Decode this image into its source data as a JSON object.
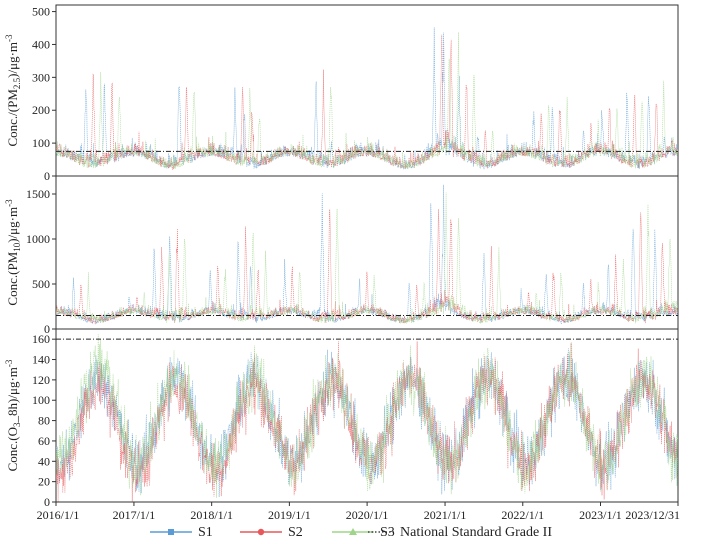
{
  "chart_data": [
    {
      "type": "line",
      "panel": "PM2.5",
      "ylabel_parts": [
        "Conc./(PM",
        "2.5",
        ")/μg·m",
        "-3"
      ],
      "ylim": [
        0,
        520
      ],
      "yticks": [
        "0",
        "100",
        "200",
        "300",
        "400",
        "500"
      ],
      "ytick_values": [
        0,
        100,
        200,
        300,
        400,
        500
      ],
      "standard_value": 75,
      "baseline": 40,
      "seasonal_amp": 20,
      "noise": 18,
      "peaks": [
        {
          "t": 0.06,
          "v": 350
        },
        {
          "t": 0.09,
          "v": 330
        },
        {
          "t": 0.21,
          "v": 350
        },
        {
          "t": 0.3,
          "v": 300
        },
        {
          "t": 0.315,
          "v": 250
        },
        {
          "t": 0.43,
          "v": 340
        },
        {
          "t": 0.455,
          "v": 120
        },
        {
          "t": 0.62,
          "v": 470
        },
        {
          "t": 0.635,
          "v": 480
        },
        {
          "t": 0.66,
          "v": 340
        },
        {
          "t": 0.69,
          "v": 170
        },
        {
          "t": 0.78,
          "v": 250
        },
        {
          "t": 0.81,
          "v": 270
        },
        {
          "t": 0.86,
          "v": 190
        },
        {
          "t": 0.89,
          "v": 260
        },
        {
          "t": 0.93,
          "v": 300
        },
        {
          "t": 0.965,
          "v": 300
        },
        {
          "t": 0.99,
          "v": 140
        }
      ]
    },
    {
      "type": "line",
      "panel": "PM10",
      "ylabel_parts": [
        "Conc.(PM",
        "10",
        ")/μg·m",
        "-3"
      ],
      "ylim": [
        0,
        1700
      ],
      "yticks": [
        "0",
        "500",
        "1000",
        "1500"
      ],
      "ytick_values": [
        0,
        500,
        1000,
        1500
      ],
      "standard_value": 150,
      "baseline": 110,
      "seasonal_amp": 50,
      "noise": 45,
      "peaks": [
        {
          "t": 0.04,
          "v": 640
        },
        {
          "t": 0.13,
          "v": 480
        },
        {
          "t": 0.17,
          "v": 1050
        },
        {
          "t": 0.195,
          "v": 1300
        },
        {
          "t": 0.26,
          "v": 800
        },
        {
          "t": 0.305,
          "v": 1250
        },
        {
          "t": 0.325,
          "v": 900
        },
        {
          "t": 0.38,
          "v": 850
        },
        {
          "t": 0.44,
          "v": 1620
        },
        {
          "t": 0.5,
          "v": 700
        },
        {
          "t": 0.58,
          "v": 600
        },
        {
          "t": 0.615,
          "v": 1650
        },
        {
          "t": 0.635,
          "v": 1680
        },
        {
          "t": 0.7,
          "v": 1000
        },
        {
          "t": 0.76,
          "v": 500
        },
        {
          "t": 0.8,
          "v": 820
        },
        {
          "t": 0.86,
          "v": 640
        },
        {
          "t": 0.9,
          "v": 900
        },
        {
          "t": 0.94,
          "v": 1500
        },
        {
          "t": 0.975,
          "v": 1300
        }
      ]
    },
    {
      "type": "line",
      "panel": "O3_8h",
      "ylabel_parts": [
        "Conc.(O",
        "3",
        "_8h)/μg·m",
        "-3"
      ],
      "ylim": [
        0,
        170
      ],
      "yticks": [
        "0",
        "20",
        "40",
        "60",
        "80",
        "100",
        "120",
        "140",
        "160"
      ],
      "ytick_values": [
        0,
        20,
        40,
        60,
        80,
        100,
        120,
        140,
        160
      ],
      "standard_value": 160,
      "seasonal": true,
      "mean": 80,
      "amp": 42,
      "peak_phase": 0.55,
      "noise": 14
    }
  ],
  "x_axis": {
    "start": "2016/1/1",
    "end": "2023/12/31",
    "tick_labels": [
      "2016/1/1",
      "2017/1/1",
      "2018/1/1",
      "2019/1/1",
      "2020/1/1",
      "2021/1/1",
      "2022/1/1",
      "2023/1/1",
      "2023/12/31"
    ]
  },
  "series": [
    {
      "name": "S1",
      "color": "#5b9bd5",
      "marker": "square"
    },
    {
      "name": "S2",
      "color": "#e8585a",
      "marker": "circle"
    },
    {
      "name": "S3",
      "color": "#9fd58a",
      "marker": "triangle"
    }
  ],
  "standard_line": {
    "name": "National Standard Grade II",
    "color": "#222222",
    "style": "dash-dot"
  },
  "legend": {
    "placement": "bottom-center"
  }
}
